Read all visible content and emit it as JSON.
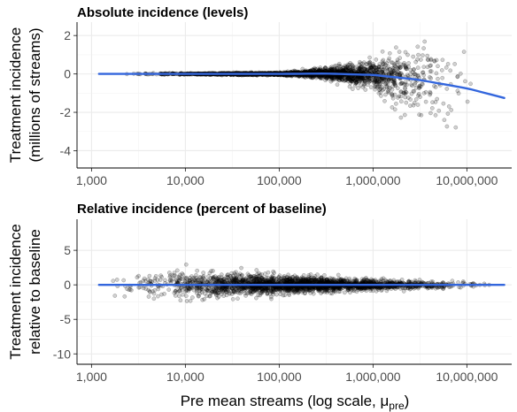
{
  "chart_data": [
    {
      "type": "scatter",
      "title": "Absolute incidence (levels)",
      "ylabel_lines": [
        "Treatment incidence",
        "(millions of streams)"
      ],
      "x_scale": "log",
      "x_ticks": [
        1000,
        10000,
        100000,
        1000000,
        10000000
      ],
      "x_tick_labels": [
        "1,000",
        "10,000",
        "100,000",
        "1,000,000",
        "10,000,000"
      ],
      "xlim": [
        700,
        30000000
      ],
      "y_ticks": [
        2,
        0,
        -2,
        -4
      ],
      "y_tick_labels": [
        "2",
        "0",
        "-2",
        "-4"
      ],
      "ylim": [
        -4.9,
        2.7
      ],
      "grid": true,
      "points_color": "#000000",
      "trend": {
        "name": "smooth",
        "color": "#3366dd",
        "x": [
          1200,
          3000,
          10000,
          30000,
          100000,
          300000,
          1000000,
          3000000,
          10000000,
          25000000
        ],
        "y": [
          0,
          0,
          0,
          0,
          0,
          0.02,
          -0.05,
          -0.3,
          -0.75,
          -1.25
        ]
      },
      "scatter_model": {
        "seed": 7,
        "x_range": [
          1150,
          26000000
        ],
        "spread": [
          {
            "x": 1000,
            "sd": 0.005
          },
          {
            "x": 100000,
            "sd": 0.03
          },
          {
            "x": 300000,
            "sd": 0.12
          },
          {
            "x": 1000000,
            "sd": 0.35
          },
          {
            "x": 3000000,
            "sd": 0.9
          },
          {
            "x": 10000000,
            "sd": 1.3
          },
          {
            "x": 26000000,
            "sd": 1.4
          }
        ]
      }
    },
    {
      "type": "scatter",
      "title": "Relative incidence (percent of baseline)",
      "ylabel_lines": [
        "Treatment incidence",
        "relative to baseline"
      ],
      "x_scale": "log",
      "x_ticks": [
        1000,
        10000,
        100000,
        1000000,
        10000000
      ],
      "x_tick_labels": [
        "1,000",
        "10,000",
        "100,000",
        "1,000,000",
        "10,000,000"
      ],
      "xlim": [
        700,
        30000000
      ],
      "xlabel_main": "Pre mean streams (log scale, μ",
      "xlabel_sub": "pre",
      "xlabel_end": ")",
      "y_ticks": [
        5,
        0,
        -5,
        -10
      ],
      "y_tick_labels": [
        "5",
        "0",
        "-5",
        "-10"
      ],
      "ylim": [
        -11.5,
        9.5
      ],
      "grid": true,
      "points_color": "#000000",
      "trend": {
        "name": "smooth",
        "color": "#3366dd",
        "x": [
          1200,
          10000,
          100000,
          1000000,
          10000000,
          25000000
        ],
        "y": [
          0,
          0,
          0,
          0,
          0,
          0
        ]
      },
      "scatter_model": {
        "seed": 11,
        "x_range": [
          1150,
          26000000
        ],
        "spread": [
          {
            "x": 1000,
            "sd": 0.8
          },
          {
            "x": 10000,
            "sd": 0.9
          },
          {
            "x": 100000,
            "sd": 0.6
          },
          {
            "x": 1000000,
            "sd": 0.35
          },
          {
            "x": 10000000,
            "sd": 0.2
          },
          {
            "x": 26000000,
            "sd": 0.1
          }
        ]
      }
    }
  ]
}
